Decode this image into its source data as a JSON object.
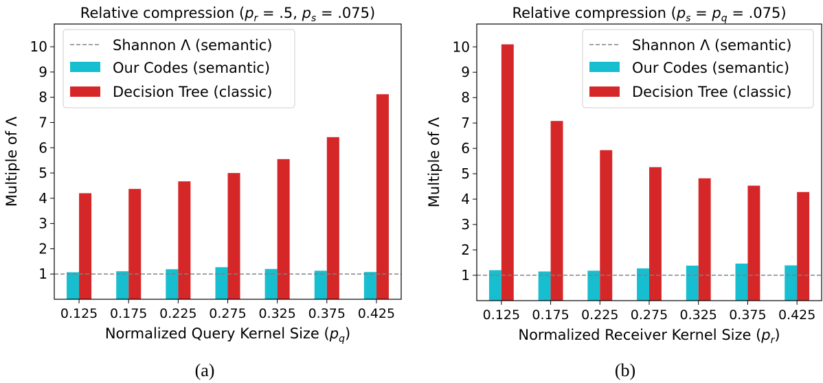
{
  "colors": {
    "semantic": "#17becf",
    "classic": "#d62728",
    "shannon": "#808080"
  },
  "chart_data": [
    {
      "type": "bar",
      "panel_label": "(a)",
      "title": "Relative compression (p_r = .5, p_s = .075)",
      "title_parts": {
        "prefix": "Relative compression (",
        "vars": [
          {
            "base": "p",
            "sub": "r",
            "val": " = .5, "
          },
          {
            "base": "p",
            "sub": "s",
            "val": " = .075)"
          }
        ]
      },
      "xlabel": "Normalized Query Kernel Size (p_q)",
      "xlabel_parts": {
        "prefix": "Normalized Query Kernel Size (",
        "base": "p",
        "sub": "q",
        "suffix": ")"
      },
      "ylabel": "Multiple of Λ",
      "categories": [
        "0.125",
        "0.175",
        "0.225",
        "0.275",
        "0.325",
        "0.375",
        "0.425"
      ],
      "yticks": [
        "1",
        "2",
        "3",
        "4",
        "5",
        "6",
        "7",
        "8",
        "9",
        "10"
      ],
      "ylim": [
        0,
        10.9
      ],
      "reference_line": {
        "name": "Shannon Λ (semantic)",
        "y": 1
      },
      "series": [
        {
          "name": "Our Codes (semantic)",
          "values": [
            1.07,
            1.11,
            1.19,
            1.27,
            1.2,
            1.13,
            1.08
          ]
        },
        {
          "name": "Decision Tree (classic)",
          "values": [
            4.2,
            4.37,
            4.67,
            5.0,
            5.55,
            6.42,
            8.12
          ]
        }
      ],
      "legend": "top-left"
    },
    {
      "type": "bar",
      "panel_label": "(b)",
      "title": "Relative compression (p_s = p_q = .075)",
      "title_parts": {
        "prefix": "Relative compression (",
        "vars": [
          {
            "base": "p",
            "sub": "s",
            "val": " = "
          },
          {
            "base": "p",
            "sub": "q",
            "val": " = .075)"
          }
        ]
      },
      "xlabel": "Normalized Receiver Kernel Size (p_r)",
      "xlabel_parts": {
        "prefix": "Normalized Receiver Kernel Size (",
        "base": "p",
        "sub": "r",
        "suffix": ")"
      },
      "ylabel": "Multiple of Λ",
      "categories": [
        "0.125",
        "0.175",
        "0.225",
        "0.275",
        "0.325",
        "0.375",
        "0.425"
      ],
      "yticks": [
        "1",
        "2",
        "3",
        "4",
        "5",
        "6",
        "7",
        "8",
        "9",
        "10"
      ],
      "ylim": [
        0,
        10.9
      ],
      "reference_line": {
        "name": "Shannon Λ (semantic)",
        "y": 1
      },
      "series": [
        {
          "name": "Our Codes (semantic)",
          "values": [
            1.2,
            1.15,
            1.18,
            1.27,
            1.38,
            1.46,
            1.39
          ]
        },
        {
          "name": "Decision Tree (classic)",
          "values": [
            10.1,
            7.08,
            5.93,
            5.26,
            4.82,
            4.53,
            4.28
          ]
        }
      ],
      "legend": "top-right"
    }
  ]
}
